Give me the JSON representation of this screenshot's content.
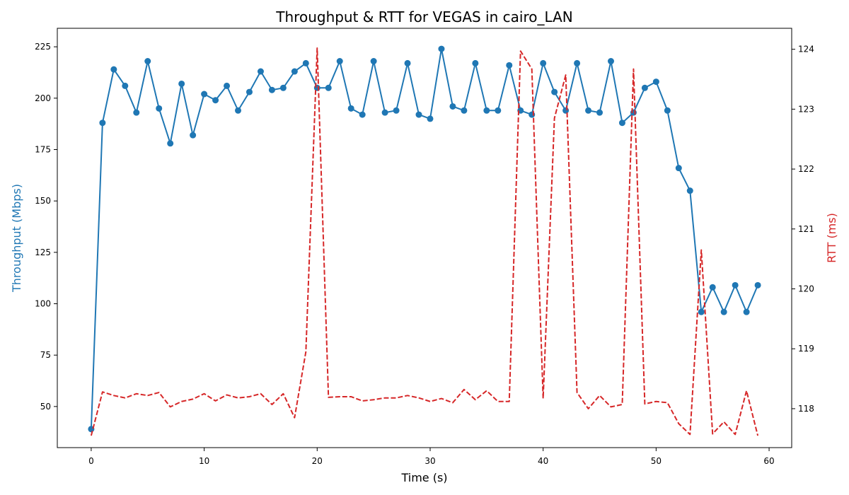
{
  "chart_data": {
    "type": "line",
    "title": "Throughput & RTT for VEGAS in cairo_LAN",
    "xlabel": "Time (s)",
    "ylabel_left": "Throughput (Mbps)",
    "ylabel_right": "RTT (ms)",
    "xlim": [
      -3,
      62
    ],
    "ylim_left": [
      30,
      234
    ],
    "ylim_right": [
      117.35,
      124.35
    ],
    "xticks": [
      0,
      10,
      20,
      30,
      40,
      50,
      60
    ],
    "yticks_left": [
      50,
      75,
      100,
      125,
      150,
      175,
      200,
      225
    ],
    "yticks_right": [
      118,
      119,
      120,
      121,
      122,
      123,
      124
    ],
    "grid": false,
    "colors": {
      "throughput": "#1f77b4",
      "rtt": "#d62728"
    },
    "x": [
      0,
      1,
      2,
      3,
      4,
      5,
      6,
      7,
      8,
      9,
      10,
      11,
      12,
      13,
      14,
      15,
      16,
      17,
      18,
      19,
      20,
      21,
      22,
      23,
      24,
      25,
      26,
      27,
      28,
      29,
      30,
      31,
      32,
      33,
      34,
      35,
      36,
      37,
      38,
      39,
      40,
      41,
      42,
      43,
      44,
      45,
      46,
      47,
      48,
      49,
      50,
      51,
      52,
      53,
      54,
      55,
      56,
      57,
      58,
      59
    ],
    "series": [
      {
        "name": "",
        "axis": "left",
        "style": "solid-markers",
        "values": [
          39,
          188,
          214,
          206,
          193,
          218,
          195,
          178,
          207,
          182,
          202,
          199,
          206,
          194,
          203,
          213,
          204,
          205,
          213,
          217,
          205,
          205,
          218,
          195,
          192,
          218,
          193,
          194,
          217,
          192,
          190,
          224,
          196,
          194,
          217,
          194,
          194,
          216,
          194,
          192,
          217,
          203,
          194,
          217,
          194,
          193,
          218,
          188,
          193,
          205,
          208,
          194,
          166,
          155,
          96,
          108,
          96,
          109,
          96,
          109
        ]
      },
      {
        "name": "",
        "axis": "right",
        "style": "dashed",
        "values": [
          117.55,
          118.28,
          118.22,
          118.18,
          118.25,
          118.22,
          118.27,
          118.03,
          118.12,
          118.16,
          118.25,
          118.13,
          118.23,
          118.18,
          118.2,
          118.25,
          118.07,
          118.25,
          117.85,
          118.95,
          124.02,
          118.19,
          118.2,
          118.2,
          118.13,
          118.15,
          118.18,
          118.18,
          118.22,
          118.18,
          118.12,
          118.17,
          118.1,
          118.32,
          118.15,
          118.3,
          118.12,
          118.12,
          123.97,
          123.67,
          118.17,
          122.85,
          123.57,
          118.27,
          118.0,
          118.22,
          118.03,
          118.07,
          123.67,
          118.08,
          118.12,
          118.1,
          117.75,
          117.57,
          120.65,
          117.58,
          117.78,
          117.57,
          118.3,
          117.55
        ]
      }
    ]
  }
}
